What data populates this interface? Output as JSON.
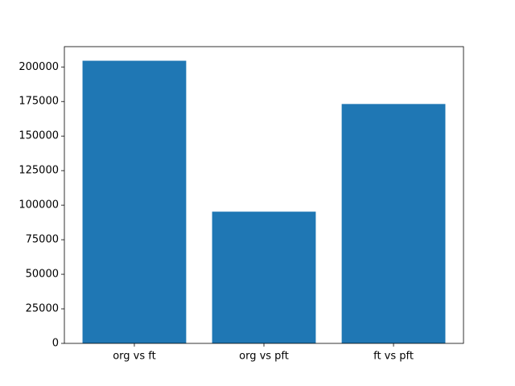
{
  "chart_data": {
    "type": "bar",
    "categories": [
      "org vs ft",
      "org vs pft",
      "ft vs pft"
    ],
    "values": [
      204500,
      95300,
      173200
    ],
    "color": "#1f77b4",
    "ylim": [
      0,
      214700
    ],
    "yticks": [
      0,
      25000,
      50000,
      75000,
      100000,
      125000,
      150000,
      175000,
      200000
    ]
  }
}
